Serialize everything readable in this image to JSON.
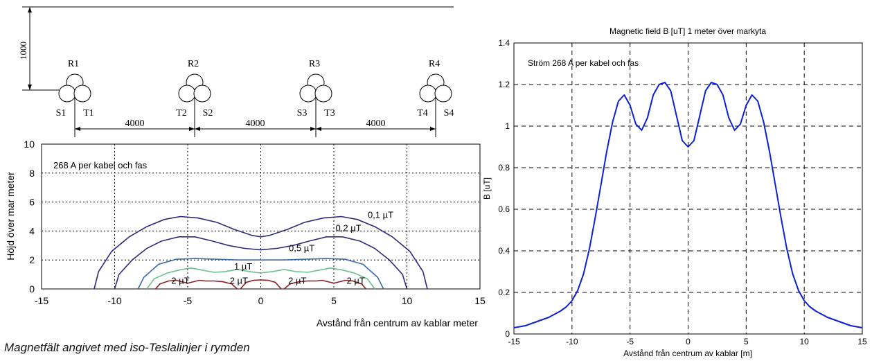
{
  "caption": "Magnetfält angivet med iso-Teslalinjer i rymden",
  "schematic": {
    "depth_label": "1000",
    "groups": [
      {
        "r": "R1",
        "s": "S1",
        "t": "T1"
      },
      {
        "r": "R2",
        "s": "S2",
        "t": "T2"
      },
      {
        "r": "R3",
        "s": "S3",
        "t": "T3"
      },
      {
        "r": "R4",
        "s": "S4",
        "t": "T4"
      }
    ],
    "spacings": [
      "4000",
      "4000",
      "4000"
    ]
  },
  "chart_data": [
    {
      "type": "contour",
      "title": "",
      "xlabel": "Avstånd från centrum av kablar meter",
      "ylabel": "Höjd över mar meter",
      "annotation": "268 A per kabel och fas",
      "xlim": [
        -15,
        15
      ],
      "ylim": [
        0,
        10
      ],
      "xticks": [
        "-15",
        "-10",
        "-5",
        "0",
        "5",
        "10",
        "15"
      ],
      "yticks": [
        "0",
        "2",
        "4",
        "6",
        "8",
        "10"
      ],
      "grid": true,
      "series": [
        {
          "name": "0,1 µT",
          "color": "#2a2a7a",
          "x": [
            -11.4,
            -11.1,
            -10.2,
            -9.0,
            -7.8,
            -6.6,
            -5.5,
            -4.3,
            -3.0,
            -1.8,
            -0.6,
            0.0,
            0.6,
            1.8,
            3.0,
            4.3,
            5.5,
            6.6,
            7.8,
            9.0,
            10.2,
            11.1,
            11.4
          ],
          "y": [
            0,
            1.2,
            2.6,
            3.6,
            4.3,
            4.8,
            5.0,
            4.9,
            4.6,
            4.1,
            3.7,
            3.6,
            3.7,
            4.1,
            4.6,
            4.9,
            5.0,
            4.8,
            4.3,
            3.6,
            2.6,
            1.2,
            0
          ]
        },
        {
          "name": "0,2 µT",
          "color": "#2a2a7a",
          "x": [
            -10.0,
            -9.7,
            -8.8,
            -7.8,
            -6.8,
            -5.6,
            -4.5,
            -3.3,
            -2.2,
            -1.1,
            0.0,
            1.1,
            2.2,
            3.3,
            4.5,
            5.6,
            6.8,
            7.8,
            8.8,
            9.7,
            10.0
          ],
          "y": [
            0,
            1.0,
            2.0,
            2.8,
            3.3,
            3.6,
            3.6,
            3.3,
            3.0,
            2.8,
            2.7,
            2.8,
            3.0,
            3.3,
            3.6,
            3.6,
            3.3,
            2.8,
            2.0,
            1.0,
            0
          ]
        },
        {
          "name": "0,5 µT",
          "color": "#3a6aa8",
          "x": [
            -8.4,
            -8.0,
            -7.0,
            -5.8,
            -4.5,
            -3.0,
            -1.5,
            0.0,
            1.5,
            3.0,
            4.5,
            5.8,
            7.0,
            8.0,
            8.4
          ],
          "y": [
            0,
            0.8,
            1.7,
            2.05,
            2.1,
            2.05,
            2.0,
            2.0,
            2.0,
            2.05,
            2.1,
            2.05,
            1.7,
            0.8,
            0
          ]
        },
        {
          "name": "1 µT",
          "color": "#6cc08a",
          "x": [
            -7.8,
            -7.3,
            -6.4,
            -5.6,
            -4.8,
            -4.0,
            -3.2,
            -2.4,
            -1.6,
            -0.8,
            0.0,
            0.8,
            1.6,
            2.4,
            3.2,
            4.0,
            4.8,
            5.6,
            6.4,
            7.3,
            7.8
          ],
          "y": [
            0,
            0.7,
            1.1,
            1.3,
            1.45,
            1.3,
            1.15,
            1.2,
            1.35,
            1.2,
            1.1,
            1.2,
            1.35,
            1.2,
            1.15,
            1.3,
            1.45,
            1.3,
            1.1,
            0.7,
            0
          ]
        },
        {
          "name": "2 µT",
          "color": "#8b1e1e",
          "groups": [
            {
              "x": [
                -7.2,
                -6.9,
                -6.3,
                -5.8,
                -5.4,
                -5.0,
                -4.6,
                -4.2,
                -3.8,
                -3.2,
                -2.6,
                -2.0,
                -1.6
              ],
              "y": [
                0,
                0.35,
                0.55,
                0.6,
                0.5,
                0.4,
                0.5,
                0.6,
                0.55,
                0.55,
                0.5,
                0.35,
                0
              ]
            },
            {
              "x": [
                -1.4,
                -1.0,
                -0.5,
                0.0,
                0.5,
                1.0,
                1.4
              ],
              "y": [
                0,
                0.45,
                0.6,
                0.62,
                0.6,
                0.45,
                0
              ]
            },
            {
              "x": [
                1.6,
                2.0,
                2.6,
                3.2,
                3.8,
                4.2,
                4.6,
                5.0,
                5.4,
                5.8,
                6.3,
                6.9,
                7.2
              ],
              "y": [
                0,
                0.35,
                0.5,
                0.55,
                0.55,
                0.6,
                0.5,
                0.4,
                0.5,
                0.6,
                0.55,
                0.35,
                0
              ]
            }
          ]
        }
      ],
      "labels": [
        {
          "text": "0,1 µT",
          "x": 8.2,
          "y": 4.9
        },
        {
          "text": "0,2 µT",
          "x": 6.0,
          "y": 4.0
        },
        {
          "text": "0,5 µT",
          "x": 2.8,
          "y": 2.6
        },
        {
          "text": "1 µT",
          "x": -1.2,
          "y": 1.35
        },
        {
          "text": "2 µT",
          "x": -5.5,
          "y": 0.35
        },
        {
          "text": "2 µT",
          "x": -1.5,
          "y": 0.35
        },
        {
          "text": "2 µT",
          "x": 2.5,
          "y": 0.35
        },
        {
          "text": "2 µT",
          "x": 6.5,
          "y": 0.35
        }
      ]
    },
    {
      "type": "line",
      "title": "Magnetic field B [uT] 1 meter över markyta",
      "xlabel": "Avstånd från centrum av kablar [m]",
      "ylabel": "B [uT]",
      "annotation": "Ström 268 A per kabel och fas",
      "xlim": [
        -15,
        15
      ],
      "ylim": [
        0,
        1.4
      ],
      "xticks": [
        "-15",
        "-10",
        "-5",
        "0",
        "5",
        "10",
        "15"
      ],
      "yticks": [
        "0",
        "0.2",
        "0.4",
        "0.6",
        "0.8",
        "1",
        "1.2",
        "1.4"
      ],
      "grid": true,
      "color": "#0a1fd6",
      "x": [
        -15,
        -14,
        -13,
        -12,
        -11,
        -10.5,
        -10,
        -9.5,
        -9,
        -8.5,
        -8,
        -7.5,
        -7,
        -6.5,
        -6,
        -5.5,
        -5,
        -4.5,
        -4,
        -3.5,
        -3,
        -2.5,
        -2,
        -1.5,
        -1,
        -0.5,
        0,
        0.5,
        1,
        1.5,
        2,
        2.5,
        3,
        3.5,
        4,
        4.5,
        5,
        5.5,
        6,
        6.5,
        7,
        7.5,
        8,
        8.5,
        9,
        9.5,
        10,
        10.5,
        11,
        12,
        13,
        14,
        15
      ],
      "y": [
        0.03,
        0.04,
        0.06,
        0.08,
        0.11,
        0.13,
        0.16,
        0.21,
        0.29,
        0.41,
        0.56,
        0.72,
        0.88,
        1.02,
        1.12,
        1.15,
        1.1,
        1.01,
        0.98,
        1.04,
        1.15,
        1.2,
        1.21,
        1.17,
        1.05,
        0.93,
        0.9,
        0.93,
        1.05,
        1.17,
        1.21,
        1.2,
        1.15,
        1.04,
        0.98,
        1.01,
        1.1,
        1.15,
        1.12,
        1.02,
        0.88,
        0.72,
        0.56,
        0.41,
        0.29,
        0.21,
        0.16,
        0.13,
        0.11,
        0.08,
        0.06,
        0.04,
        0.03
      ]
    }
  ]
}
